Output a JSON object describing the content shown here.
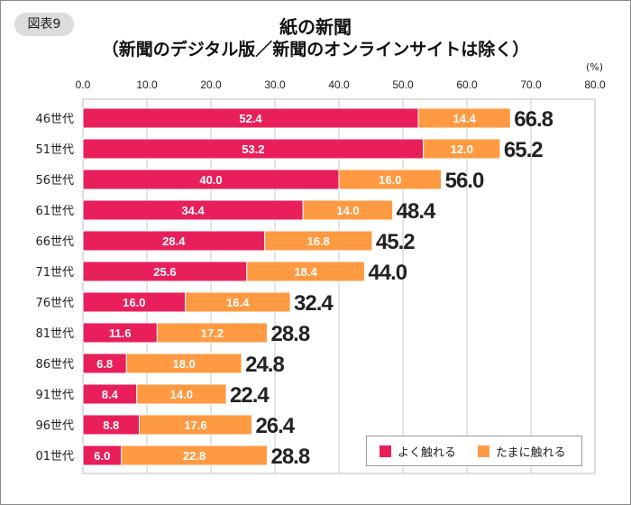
{
  "badge": "図表9",
  "chart_data": {
    "type": "bar",
    "orientation": "horizontal",
    "stacked": true,
    "title": "紙の新聞",
    "subtitle": "（新聞のデジタル版／新聞のオンラインサイトは除く）",
    "unit": "(%)",
    "xlim": [
      0,
      80
    ],
    "xticks": [
      "0.0",
      "10.0",
      "20.0",
      "30.0",
      "40.0",
      "50.0",
      "60.0",
      "70.0",
      "80.0"
    ],
    "grid": true,
    "legend_position": "bottom-right",
    "categories": [
      "46世代",
      "51世代",
      "56世代",
      "61世代",
      "66世代",
      "71世代",
      "76世代",
      "81世代",
      "86世代",
      "91世代",
      "96世代",
      "01世代"
    ],
    "series": [
      {
        "name": "よく触れる",
        "color": "#e91f5b",
        "values": [
          52.4,
          53.2,
          40.0,
          34.4,
          28.4,
          25.6,
          16.0,
          11.6,
          6.8,
          8.4,
          8.8,
          6.0
        ]
      },
      {
        "name": "たまに触れる",
        "color": "#ff9a42",
        "values": [
          14.4,
          12.0,
          16.0,
          14.0,
          16.8,
          18.4,
          16.4,
          17.2,
          18.0,
          14.0,
          17.6,
          22.8
        ]
      }
    ],
    "totals": [
      66.8,
      65.2,
      56.0,
      48.4,
      45.2,
      44.0,
      32.4,
      28.8,
      24.8,
      22.4,
      26.4,
      28.8
    ]
  }
}
